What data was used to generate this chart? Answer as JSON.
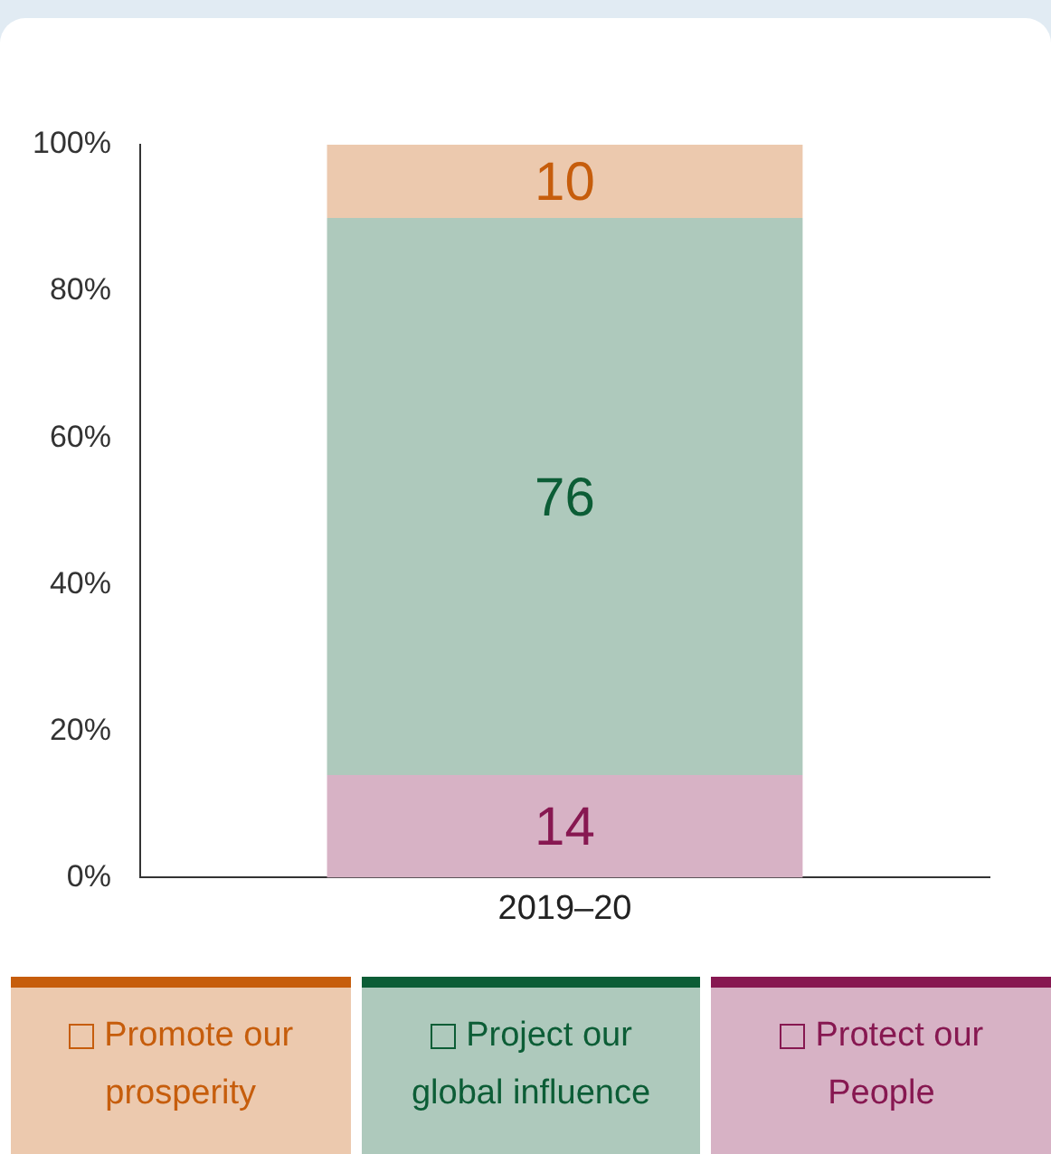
{
  "chart_data": {
    "type": "bar",
    "stacked": true,
    "categories": [
      "2019–20"
    ],
    "series": [
      {
        "name": "Protect our People",
        "color": "#d7b2c5",
        "values": [
          14
        ]
      },
      {
        "name": "Project our global influence",
        "color": "#aec9bc",
        "values": [
          76
        ]
      },
      {
        "name": "Promote our prosperity",
        "color": "#ecc9ae",
        "values": [
          10
        ]
      }
    ],
    "ylim": [
      0,
      100
    ],
    "yticks": [
      {
        "value": 0,
        "label": "0%"
      },
      {
        "value": 20,
        "label": "20%"
      },
      {
        "value": 40,
        "label": "40%"
      },
      {
        "value": 60,
        "label": "60%"
      },
      {
        "value": 80,
        "label": "80%"
      },
      {
        "value": 100,
        "label": "100%"
      }
    ],
    "data_labels": true,
    "grid": false,
    "legend": "bottom"
  }
}
